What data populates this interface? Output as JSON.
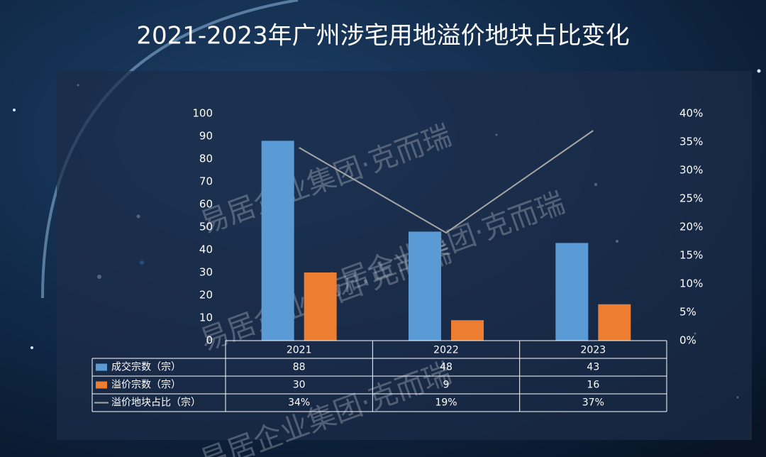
{
  "chart_data": {
    "type": "bar",
    "title": "2021-2023年广州涉宅用地溢价地块占比变化",
    "watermark": "易居企业集团·克而瑞",
    "categories": [
      "2021",
      "2022",
      "2023"
    ],
    "series": [
      {
        "name": "成交宗数（宗）",
        "color": "#5b9bd5",
        "type": "bar",
        "values": [
          88,
          48,
          43
        ]
      },
      {
        "name": "溢价宗数（宗）",
        "color": "#ed7d31",
        "type": "bar",
        "values": [
          30,
          9,
          16
        ]
      },
      {
        "name": "溢价地块占比（宗）",
        "color": "#a6a6a6",
        "type": "line",
        "axis": "y2",
        "values": [
          34,
          19,
          37
        ],
        "value_labels": [
          "34%",
          "19%",
          "37%"
        ]
      }
    ],
    "ylim": [
      0,
      100
    ],
    "yticks": [
      0,
      10,
      20,
      30,
      40,
      50,
      60,
      70,
      80,
      90,
      100
    ],
    "y2lim": [
      0,
      40
    ],
    "y2ticks": [
      {
        "value": 0,
        "label": "0%"
      },
      {
        "value": 5,
        "label": "5%"
      },
      {
        "value": 10,
        "label": "10%"
      },
      {
        "value": 15,
        "label": "15%"
      },
      {
        "value": 20,
        "label": "20%"
      },
      {
        "value": 25,
        "label": "25%"
      },
      {
        "value": 30,
        "label": "30%"
      },
      {
        "value": 35,
        "label": "35%"
      },
      {
        "value": 40,
        "label": "40%"
      }
    ]
  }
}
